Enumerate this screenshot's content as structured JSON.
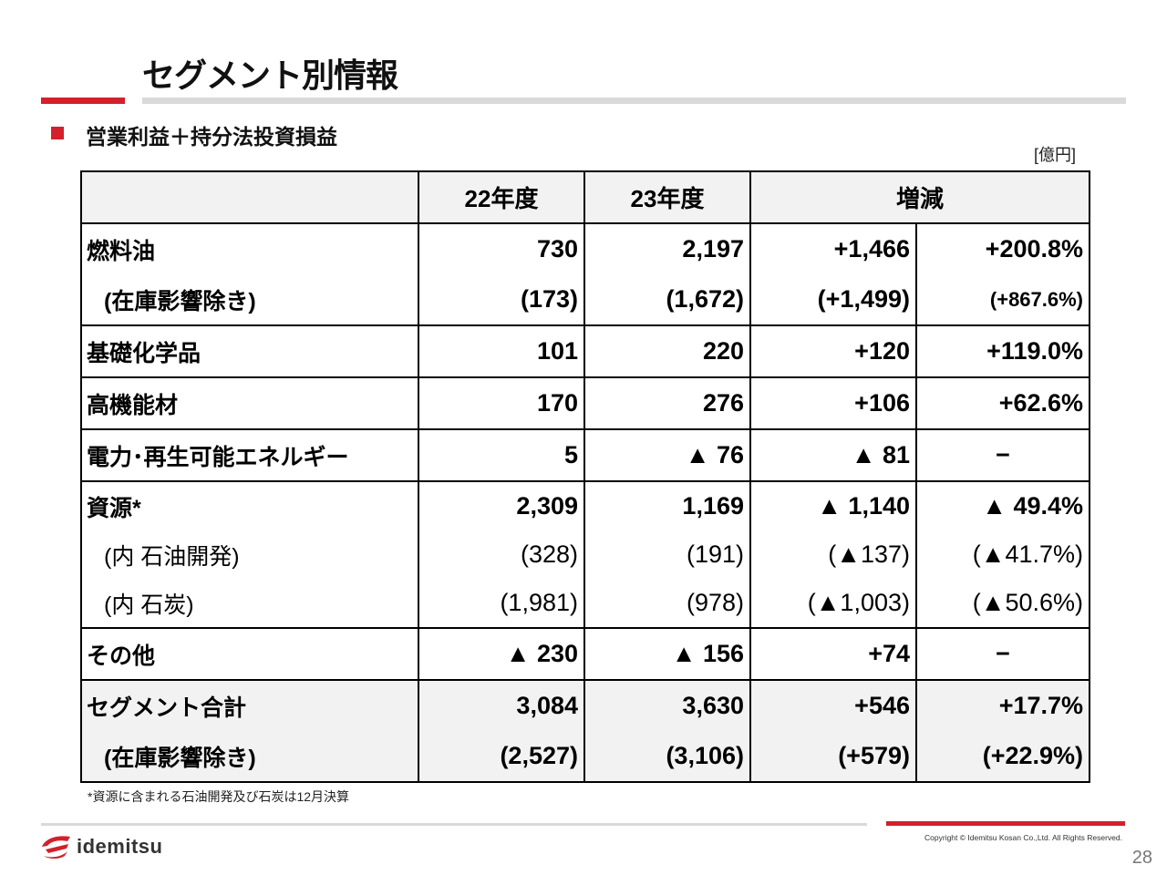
{
  "title": "セグメント別情報",
  "subtitle": "営業利益＋持分法投資損益",
  "unit": "[億円]",
  "table": {
    "headers": [
      "",
      "22年度",
      "23年度",
      "増減"
    ],
    "rows": [
      {
        "label": "燃料油",
        "c1": "730",
        "c2": "2,197",
        "c3": "+1,466",
        "c4": "+200.8%"
      },
      {
        "label": "(在庫影響除き)",
        "c1": "(173)",
        "c2": "(1,672)",
        "c3": "(+1,499)",
        "c4": "(+867.6%)"
      },
      {
        "label": "基礎化学品",
        "c1": "101",
        "c2": "220",
        "c3": "+120",
        "c4": "+119.0%"
      },
      {
        "label": "高機能材",
        "c1": "170",
        "c2": "276",
        "c3": "+106",
        "c4": "+62.6%"
      },
      {
        "label": "電力･再生可能エネルギー",
        "c1": "5",
        "c2": "▲ 76",
        "c3": "▲ 81",
        "c4": "−"
      },
      {
        "label": "資源*",
        "c1": "2,309",
        "c2": "1,169",
        "c3": "▲ 1,140",
        "c4": "▲ 49.4%"
      },
      {
        "label": "(内 石油開発)",
        "c1": "(328)",
        "c2": "(191)",
        "c3": "(▲137)",
        "c4": "(▲41.7%)"
      },
      {
        "label": "(内 石炭)",
        "c1": "(1,981)",
        "c2": "(978)",
        "c3": "(▲1,003)",
        "c4": "(▲50.6%)"
      },
      {
        "label": "その他",
        "c1": "▲ 230",
        "c2": "▲ 156",
        "c3": "+74",
        "c4": "−"
      },
      {
        "label": "セグメント合計",
        "c1": "3,084",
        "c2": "3,630",
        "c3": "+546",
        "c4": "+17.7%"
      },
      {
        "label": "(在庫影響除き)",
        "c1": "(2,527)",
        "c2": "(3,106)",
        "c3": "(+579)",
        "c4": "(+22.9%)"
      }
    ]
  },
  "note": "*資源に含まれる石油開発及び石炭は12月決算",
  "footer": {
    "logo_text": "idemitsu",
    "copyright": "Copyright © Idemitsu Kosan Co.,Ltd.  All Rights Reserved.",
    "page_number": "28"
  },
  "colors": {
    "accent": "#d4202c",
    "rule": "#d9d9d9",
    "shade": "#f2f2f2"
  }
}
